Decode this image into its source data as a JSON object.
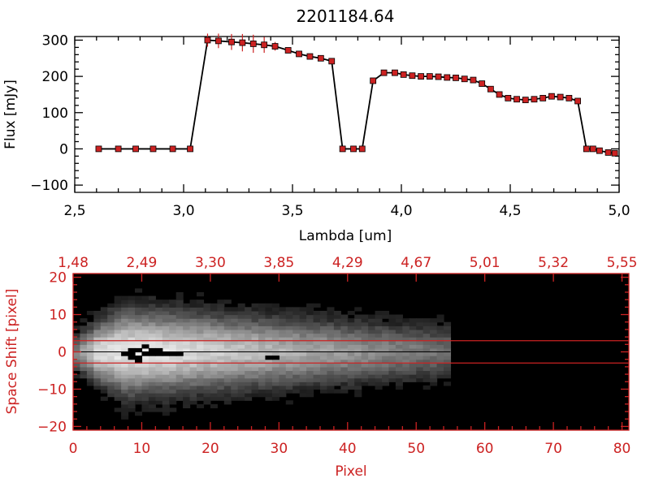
{
  "chart_data": [
    {
      "type": "line",
      "title": "2201184.64",
      "xlabel": "Lambda [um]",
      "ylabel": "Flux [mJy]",
      "xlim": [
        2.5,
        5.0
      ],
      "ylim": [
        -120,
        310
      ],
      "xticks": [
        "2.5",
        "3.0",
        "3.5",
        "4.0",
        "4.5",
        "5.0"
      ],
      "yticks": [
        "-100",
        "0",
        "100",
        "200",
        "300"
      ],
      "line_color": "#000000",
      "marker_color": "#cc2222",
      "series": [
        {
          "x": [
            2.61,
            2.7,
            2.78,
            2.86,
            2.95,
            3.03,
            3.11,
            3.16,
            3.22,
            3.27,
            3.32,
            3.37,
            3.42,
            3.48,
            3.53,
            3.58,
            3.63,
            3.68,
            3.73,
            3.78,
            3.82,
            3.87,
            3.92,
            3.97,
            4.01,
            4.05,
            4.09,
            4.13,
            4.17,
            4.21,
            4.25,
            4.29,
            4.33,
            4.37,
            4.41,
            4.45,
            4.49,
            4.53,
            4.57,
            4.61,
            4.65,
            4.69,
            4.73,
            4.77,
            4.81,
            4.85,
            4.88,
            4.91,
            4.95,
            4.98
          ],
          "y": [
            0,
            0,
            0,
            0,
            0,
            0,
            300,
            298,
            295,
            293,
            290,
            287,
            283,
            272,
            262,
            255,
            250,
            242,
            0,
            0,
            0,
            188,
            210,
            210,
            205,
            202,
            200,
            200,
            199,
            197,
            196,
            193,
            190,
            180,
            165,
            150,
            140,
            137,
            135,
            137,
            140,
            145,
            143,
            140,
            132,
            0,
            0,
            -5,
            -10,
            -12
          ],
          "yerr": [
            0,
            0,
            0,
            0,
            0,
            0,
            18,
            20,
            22,
            24,
            25,
            22,
            12,
            8,
            6,
            5,
            5,
            5,
            0,
            0,
            0,
            4,
            4,
            4,
            4,
            4,
            4,
            4,
            4,
            4,
            4,
            4,
            4,
            4,
            4,
            4,
            4,
            4,
            4,
            4,
            4,
            4,
            4,
            4,
            4,
            0,
            0,
            3,
            3,
            3
          ]
        }
      ]
    },
    {
      "type": "heatmap",
      "xlabel": "Pixel",
      "ylabel": "Space Shift [pixel]",
      "xlim": [
        0,
        81
      ],
      "ylim": [
        -21,
        21
      ],
      "xticks": [
        "0",
        "10",
        "20",
        "30",
        "40",
        "50",
        "60",
        "70",
        "80"
      ],
      "yticks": [
        "-20",
        "-10",
        "0",
        "10",
        "20"
      ],
      "top_axis_ticks": [
        "1.48",
        "2.49",
        "3.30",
        "3.85",
        "4.29",
        "4.67",
        "5.01",
        "5.32",
        "5.55"
      ],
      "axis_color": "#cc2222",
      "extraction_lines": [
        3,
        -3
      ],
      "center_line": 0,
      "spectrum_extent_px": 55,
      "saturated_spots": [
        {
          "x": 9.5,
          "y": -0.5
        },
        {
          "x": 29,
          "y": -1.5
        }
      ]
    }
  ]
}
